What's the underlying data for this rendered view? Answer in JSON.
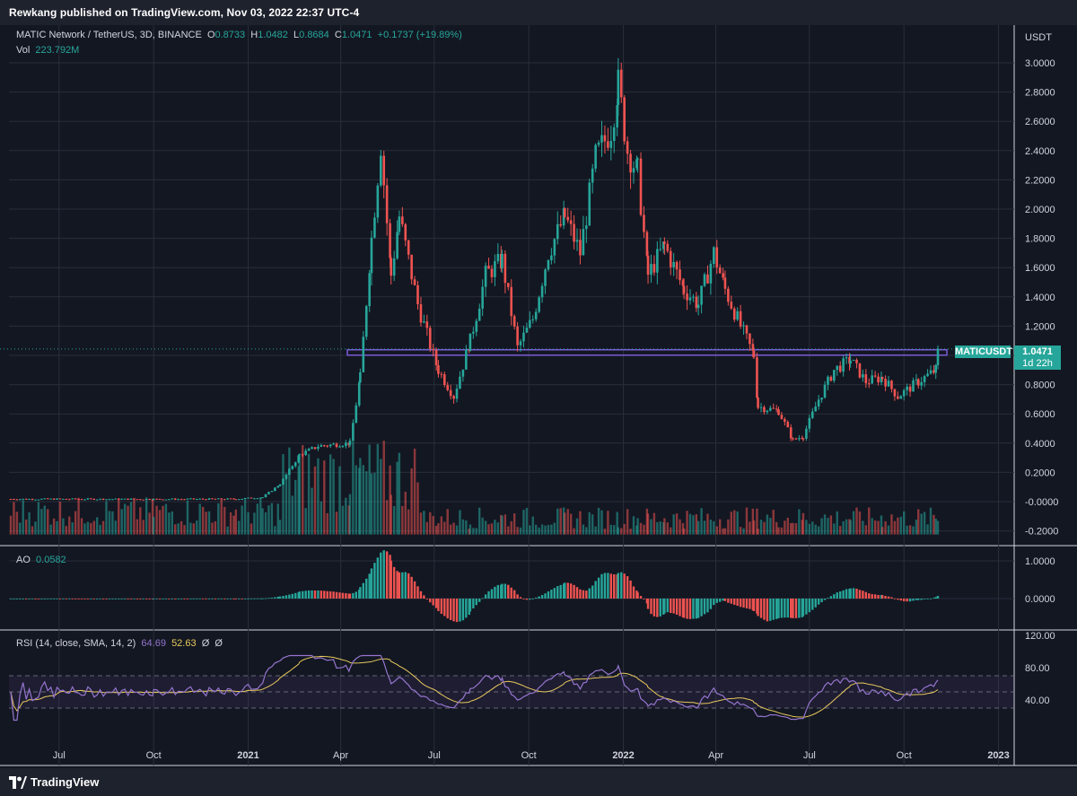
{
  "header": {
    "publisher": "Rewkang published on TradingView.com, Nov 03, 2022 22:37 UTC-4"
  },
  "footer": {
    "brand": "TradingView"
  },
  "main_legend": {
    "symbol": "MATIC Network / TetherUS, 3D, BINANCE",
    "o_label": "O",
    "o": "0.8733",
    "h_label": "H",
    "h": "1.0482",
    "l_label": "L",
    "l": "0.8684",
    "c_label": "C",
    "c": "1.0471",
    "change": "+0.1737 (+19.89%)",
    "vol_label": "Vol",
    "vol": "223.792M"
  },
  "ao_legend": {
    "label": "AO",
    "value": "0.0582"
  },
  "rsi_legend": {
    "label": "RSI (14, close, SMA, 14, 2)",
    "rsi": "64.69",
    "sma": "52.63",
    "d1": "Ø",
    "d2": "Ø"
  },
  "price_tag": {
    "symbol": "MATICUSDT",
    "price": "1.0471",
    "countdown": "1d 22h"
  },
  "colors": {
    "background": "#131722",
    "up": "#26a69a",
    "down": "#ef5350",
    "rsi": "#9575cd",
    "rsi_sma": "#e8c95c",
    "level": "#7b5bd6"
  },
  "chart_data": [
    {
      "type": "candlestick",
      "title": "MATIC Network / TetherUS, 3D, BINANCE",
      "yaxis_unit": "USDT",
      "ylim": [
        -0.2,
        3.0
      ],
      "y_ticks": [
        "3.0000",
        "2.8000",
        "2.6000",
        "2.4000",
        "2.2000",
        "2.0000",
        "1.8000",
        "1.6000",
        "1.4000",
        "1.2000",
        "1.0000",
        "0.8000",
        "0.6000",
        "0.4000",
        "0.2000",
        "-0.0000",
        "-0.2000"
      ],
      "x_ticks": [
        "Jul",
        "Oct",
        "2021",
        "Apr",
        "Jul",
        "Oct",
        "2022",
        "Apr",
        "Jul",
        "Oct",
        "2023"
      ],
      "horizontal_level": 1.02,
      "last_close": 1.0471,
      "approx_close_path": [
        [
          "2020-05-15",
          0.018
        ],
        [
          "2020-10-01",
          0.017
        ],
        [
          "2020-12-20",
          0.018
        ],
        [
          "2021-01-15",
          0.03
        ],
        [
          "2021-02-01",
          0.12
        ],
        [
          "2021-02-20",
          0.32
        ],
        [
          "2021-03-10",
          0.38
        ],
        [
          "2021-04-10",
          0.4
        ],
        [
          "2021-04-20",
          0.85
        ],
        [
          "2021-05-01",
          1.8
        ],
        [
          "2021-05-10",
          2.45
        ],
        [
          "2021-05-20",
          1.55
        ],
        [
          "2021-05-28",
          1.95
        ],
        [
          "2021-06-15",
          1.35
        ],
        [
          "2021-06-30",
          1.0
        ],
        [
          "2021-07-05",
          0.9
        ],
        [
          "2021-07-20",
          0.72
        ],
        [
          "2021-08-05",
          1.1
        ],
        [
          "2021-08-20",
          1.55
        ],
        [
          "2021-09-05",
          1.65
        ],
        [
          "2021-09-20",
          1.05
        ],
        [
          "2021-10-05",
          1.25
        ],
        [
          "2021-10-20",
          1.7
        ],
        [
          "2021-11-05",
          1.95
        ],
        [
          "2021-11-20",
          1.7
        ],
        [
          "2021-12-05",
          2.35
        ],
        [
          "2021-12-20",
          2.55
        ],
        [
          "2021-12-27",
          2.85
        ],
        [
          "2022-01-05",
          2.4
        ],
        [
          "2022-01-15",
          2.25
        ],
        [
          "2022-01-25",
          1.55
        ],
        [
          "2022-02-10",
          1.75
        ],
        [
          "2022-03-01",
          1.45
        ],
        [
          "2022-03-15",
          1.35
        ],
        [
          "2022-03-30",
          1.7
        ],
        [
          "2022-04-10",
          1.45
        ],
        [
          "2022-04-25",
          1.2
        ],
        [
          "2022-05-08",
          1.0
        ],
        [
          "2022-05-12",
          0.65
        ],
        [
          "2022-06-01",
          0.62
        ],
        [
          "2022-06-15",
          0.42
        ],
        [
          "2022-06-25",
          0.45
        ],
        [
          "2022-07-10",
          0.7
        ],
        [
          "2022-07-25",
          0.9
        ],
        [
          "2022-08-10",
          0.97
        ],
        [
          "2022-08-25",
          0.82
        ],
        [
          "2022-09-10",
          0.85
        ],
        [
          "2022-09-25",
          0.72
        ],
        [
          "2022-10-15",
          0.82
        ],
        [
          "2022-11-01",
          0.9
        ],
        [
          "2022-11-03",
          1.0471
        ]
      ]
    },
    {
      "type": "bar",
      "title": "AO",
      "value": 0.0582,
      "ylim": [
        -0.7,
        1.2
      ],
      "y_ticks": [
        "1.0000",
        "0.0000"
      ]
    },
    {
      "type": "line",
      "title": "RSI (14, close, SMA, 14, 2)",
      "series": [
        {
          "name": "RSI",
          "last": 64.69
        },
        {
          "name": "SMA",
          "last": 52.63
        }
      ],
      "ylim": [
        20,
        120
      ],
      "y_ticks": [
        "120.00",
        "80.00",
        "40.00"
      ],
      "band": [
        30,
        70
      ],
      "middle": 50
    }
  ]
}
